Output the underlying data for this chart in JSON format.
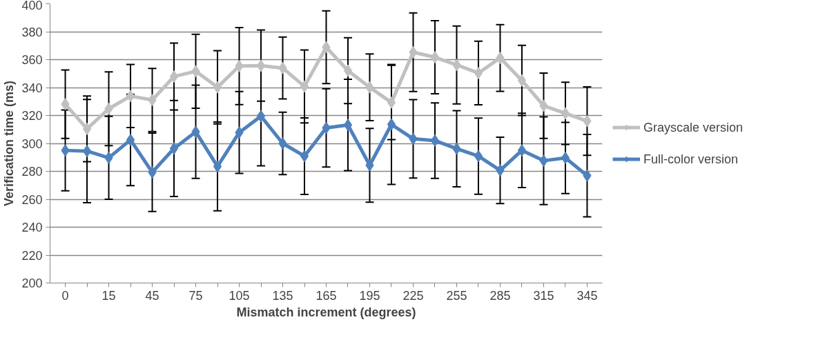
{
  "chart_data": {
    "type": "line",
    "xlabel": "Mismatch increment (degrees)",
    "ylabel": "Verification time (ms)",
    "categories": [
      "0",
      null,
      "15",
      null,
      "45",
      null,
      "75",
      null,
      "105",
      null,
      "135",
      null,
      "165",
      null,
      "195",
      null,
      "225",
      null,
      "255",
      null,
      "285",
      null,
      "315",
      null,
      "345"
    ],
    "ylim": [
      200,
      400
    ],
    "yticks": [
      200,
      220,
      240,
      260,
      280,
      300,
      320,
      340,
      360,
      380,
      400
    ],
    "grid": "y",
    "legend": "right",
    "marker": "diamond",
    "line_style": "solid",
    "series": [
      {
        "name": "Grayscale version",
        "color": "#c0c0c0",
        "values": [
          328.1,
          310.4,
          324.8,
          333.9,
          331.1,
          347.9,
          351.7,
          340.2,
          355.4,
          355.7,
          354.0,
          340.8,
          368.9,
          352.1,
          340.2,
          329.3,
          365.3,
          361.7,
          356.2,
          350.4,
          361.2,
          345.1,
          327.0,
          321.5,
          316.0
        ],
        "errors": [
          24.5,
          23.5,
          26.4,
          22.6,
          22.6,
          24.0,
          26.5,
          26.2,
          27.6,
          25.5,
          22.2,
          26.1,
          26.1,
          23.6,
          23.9,
          26.6,
          28.1,
          26.2,
          27.9,
          22.8,
          23.9,
          25.1,
          23.4,
          22.3,
          24.5
        ]
      },
      {
        "name": "Full-color version",
        "color": "#4f81bd",
        "values": [
          295.0,
          294.5,
          289.7,
          302.5,
          279.3,
          296.4,
          308.3,
          283.5,
          307.8,
          319.5,
          300.0,
          290.9,
          311.1,
          313.2,
          284.3,
          313.6,
          303.3,
          302.0,
          296.2,
          290.9,
          280.7,
          295.0,
          287.6,
          289.6,
          276.9
        ],
        "errors": [
          28.9,
          37.0,
          29.7,
          32.7,
          28.1,
          34.4,
          33.4,
          31.8,
          29.3,
          35.5,
          22.3,
          27.4,
          28.0,
          32.7,
          26.4,
          43.0,
          28.1,
          27.0,
          27.3,
          27.3,
          23.8,
          26.6,
          31.4,
          25.5,
          29.5
        ]
      }
    ]
  }
}
